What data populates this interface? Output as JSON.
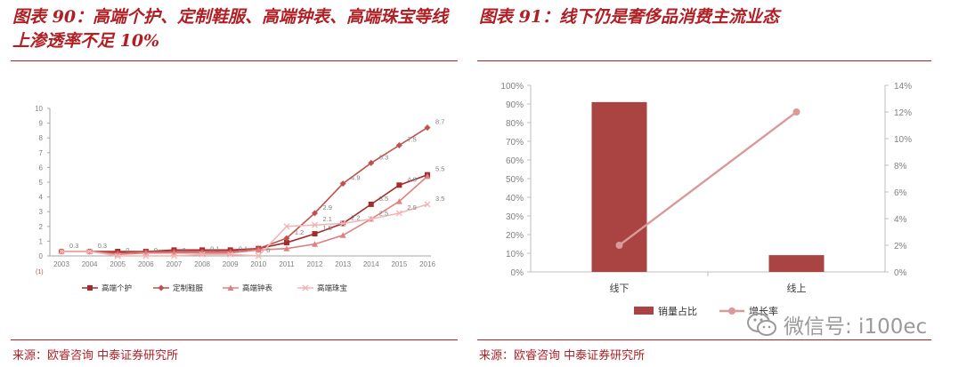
{
  "left": {
    "title": "图表 90：高端个护、定制鞋服、高端钟表、高端珠宝等线上渗透率不足 10%",
    "source": "来源：欧睿咨询 中泰证券研究所",
    "unit_label": "(1)"
  },
  "right": {
    "title": "图表 91：线下仍是奢侈品消费主流业态",
    "source": "来源：欧睿咨询 中泰证券研究所"
  },
  "watermark": "微信号: i100ec",
  "chart_data": [
    {
      "type": "line",
      "title": "",
      "x": [
        "2003",
        "2004",
        "2005",
        "2006",
        "2007",
        "2008",
        "2009",
        "2010",
        "2011",
        "2012",
        "2013",
        "2014",
        "2015",
        "2016"
      ],
      "ylim": [
        0,
        10
      ],
      "yticks": [
        0,
        1,
        2,
        3,
        4,
        5,
        6,
        7,
        8,
        9,
        10
      ],
      "legend_position": "bottom",
      "series": [
        {
          "name": "高端个护",
          "color": "#a52a2a",
          "marker": "square",
          "values": [
            0.3,
            0.3,
            0.3,
            0.3,
            0.4,
            0.4,
            0.4,
            0.5,
            0.9,
            1.5,
            2.2,
            3.5,
            4.8,
            5.5
          ],
          "labels": [
            "0.3",
            "0.3",
            "",
            "",
            "",
            "",
            "",
            "",
            "",
            "1.5",
            "2.2",
            "3.5",
            "4.8",
            "5.5"
          ]
        },
        {
          "name": "定制鞋服",
          "color": "#c0504d",
          "marker": "diamond",
          "values": [
            0.3,
            0.3,
            0.2,
            0.3,
            0.3,
            0.3,
            0.3,
            0.5,
            1.2,
            2.9,
            4.9,
            6.3,
            7.5,
            8.7
          ],
          "labels": [
            "",
            "",
            "",
            "",
            "",
            "",
            "",
            "",
            "1.2",
            "2.9",
            "4.9",
            "6.3",
            "7.5",
            "8.7"
          ]
        },
        {
          "name": "高端钟表",
          "color": "#e08080",
          "marker": "triangle",
          "values": [
            0.3,
            0.3,
            0.1,
            0.2,
            0.2,
            0.2,
            0.2,
            0.4,
            0.5,
            0.8,
            1.4,
            2.5,
            3.7,
            5.4
          ],
          "labels": [
            "",
            "",
            "",
            "",
            "",
            "",
            "",
            "",
            "",
            "",
            "",
            "",
            "",
            ""
          ]
        },
        {
          "name": "高端珠宝",
          "color": "#f0b6b6",
          "marker": "x",
          "values": [
            0.3,
            0.3,
            0.0,
            0.0,
            0.0,
            0.1,
            0.1,
            0.0,
            2.0,
            2.1,
            2.2,
            2.5,
            2.9,
            3.5
          ],
          "labels": [
            "",
            "",
            "0",
            "0",
            "0",
            "0.1",
            "0.1",
            "0",
            "",
            "2.1",
            "",
            "2.5",
            "2.9",
            "3.5"
          ]
        }
      ]
    },
    {
      "type": "bar",
      "title": "",
      "categories": [
        "线下",
        "线上"
      ],
      "ylim": [
        0,
        100
      ],
      "yticks": [
        "0%",
        "10%",
        "20%",
        "30%",
        "40%",
        "50%",
        "60%",
        "70%",
        "80%",
        "90%",
        "100%"
      ],
      "y2lim": [
        0,
        14
      ],
      "y2ticks": [
        "0%",
        "2%",
        "4%",
        "6%",
        "8%",
        "10%",
        "12%",
        "14%"
      ],
      "legend_position": "bottom",
      "series": [
        {
          "name": "销量占比",
          "type": "bar",
          "axis": "left",
          "color": "#a94442",
          "values": [
            91,
            9
          ]
        },
        {
          "name": "增长率",
          "type": "line",
          "axis": "right",
          "color": "#d89a9a",
          "values": [
            2,
            12
          ]
        }
      ]
    }
  ]
}
